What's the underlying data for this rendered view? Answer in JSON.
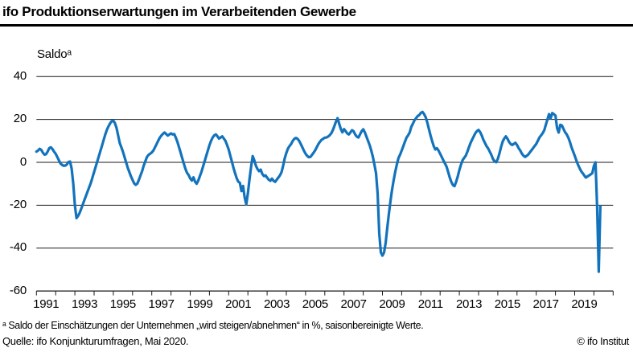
{
  "header": {
    "title": "ifo Produktionserwartungen im Verarbeitenden Gewerbe"
  },
  "footer": {
    "footnote": "ᵃ Saldo der Einschätzungen der Unternehmen „wird steigen/abnehmen“ in %, saisonbereinigte Werte.",
    "source": "Quelle: ifo Konjunkturumfragen, Mai 2020.",
    "copyright": "© ifo Institut"
  },
  "chart_data": {
    "type": "line",
    "title": "ifo Produktionserwartungen im Verarbeitenden Gewerbe",
    "ylabel": "Saldoᵃ",
    "xlabel": "",
    "ylim": [
      -60,
      40
    ],
    "yticks": [
      40,
      20,
      0,
      -20,
      -40,
      -60
    ],
    "x_start_year": 1991,
    "x_end_year": 2021,
    "xtick_years": [
      1991,
      1993,
      1995,
      1997,
      1999,
      2001,
      2003,
      2005,
      2007,
      2009,
      2011,
      2013,
      2015,
      2017,
      2019
    ],
    "grid": true,
    "legend_position": "none",
    "line_color": "#1273bc",
    "grid_color": "#1a1a1a",
    "series": [
      {
        "name": "Produktionserwartungen (Saldo, saisonbereinigt)",
        "frequency": "monthly",
        "start": "1991-01",
        "end": "2020-05",
        "values": [
          5.0,
          5.5,
          6.3,
          5.8,
          4.5,
          3.6,
          3.8,
          5.0,
          6.6,
          7.0,
          6.2,
          5.0,
          4.0,
          2.5,
          1.0,
          -0.5,
          -1.2,
          -1.6,
          -1.5,
          -1.0,
          0.2,
          0.4,
          -3.0,
          -10.0,
          -20.0,
          -26.0,
          -25.0,
          -23.5,
          -21.5,
          -19.5,
          -17.5,
          -15.5,
          -13.5,
          -11.5,
          -9.5,
          -7.0,
          -4.5,
          -2.0,
          0.5,
          3.0,
          5.5,
          8.0,
          10.5,
          13.0,
          15.2,
          16.8,
          18.2,
          19.2,
          19.4,
          18.3,
          16.0,
          12.5,
          9.0,
          7.0,
          5.0,
          2.5,
          0.0,
          -2.5,
          -4.5,
          -6.5,
          -8.2,
          -9.8,
          -10.5,
          -9.9,
          -8.0,
          -6.0,
          -4.0,
          -1.5,
          0.5,
          2.5,
          3.5,
          4.0,
          4.6,
          5.5,
          7.0,
          8.5,
          10.1,
          11.5,
          12.5,
          13.3,
          13.9,
          13.2,
          12.5,
          13.0,
          13.5,
          13.0,
          13.2,
          11.5,
          9.5,
          7.0,
          4.5,
          2.0,
          -0.5,
          -3.0,
          -4.9,
          -5.9,
          -7.5,
          -8.5,
          -7.0,
          -9.0,
          -10.0,
          -8.5,
          -6.5,
          -4.5,
          -2.0,
          0.5,
          3.0,
          5.5,
          8.0,
          10.0,
          11.6,
          12.6,
          13.0,
          12.1,
          11.1,
          11.6,
          12.1,
          11.1,
          10.0,
          8.1,
          6.0,
          3.1,
          0.4,
          -2.6,
          -5.1,
          -7.4,
          -9.0,
          -9.5,
          -13.4,
          -11.0,
          -16.4,
          -19.6,
          -14.4,
          -7.9,
          -2.0,
          2.9,
          0.9,
          -1.6,
          -3.1,
          -4.1,
          -3.4,
          -5.4,
          -6.4,
          -6.1,
          -7.1,
          -8.1,
          -8.6,
          -7.6,
          -8.6,
          -9.1,
          -8.1,
          -7.1,
          -6.1,
          -4.6,
          -1.6,
          1.9,
          4.4,
          6.4,
          7.6,
          8.6,
          10.0,
          11.0,
          11.4,
          11.0,
          10.0,
          8.6,
          7.0,
          5.4,
          4.0,
          3.0,
          2.4,
          2.5,
          3.5,
          4.5,
          5.6,
          7.0,
          8.5,
          9.6,
          10.5,
          11.0,
          11.5,
          11.6,
          12.0,
          12.6,
          13.5,
          15.0,
          17.0,
          19.0,
          20.6,
          18.0,
          15.6,
          14.0,
          15.5,
          14.6,
          13.5,
          13.0,
          14.0,
          15.0,
          14.5,
          13.0,
          12.0,
          11.6,
          13.0,
          14.5,
          15.4,
          14.0,
          12.0,
          10.0,
          8.0,
          5.5,
          2.5,
          -1.0,
          -5.0,
          -14.5,
          -33.0,
          -42.0,
          -43.5,
          -42.0,
          -37.5,
          -30.5,
          -24.0,
          -18.0,
          -12.9,
          -8.4,
          -4.4,
          -1.0,
          2.0,
          3.6,
          5.5,
          7.5,
          9.6,
          11.5,
          12.6,
          14.0,
          16.5,
          18.0,
          19.6,
          20.6,
          21.6,
          22.1,
          23.1,
          23.5,
          22.5,
          21.0,
          18.5,
          15.5,
          12.5,
          10.0,
          7.6,
          6.0,
          6.6,
          5.5,
          4.0,
          2.5,
          1.0,
          -0.5,
          -2.0,
          -4.5,
          -7.0,
          -9.1,
          -10.6,
          -11.1,
          -9.1,
          -6.6,
          -3.6,
          -1.1,
          1.0,
          2.1,
          3.1,
          5.0,
          7.0,
          9.0,
          10.6,
          12.1,
          13.6,
          14.6,
          15.1,
          14.1,
          12.5,
          10.5,
          9.0,
          7.5,
          6.5,
          5.0,
          3.5,
          1.6,
          0.5,
          0.1,
          1.6,
          4.1,
          7.1,
          9.6,
          11.1,
          12.1,
          11.1,
          9.6,
          8.6,
          8.1,
          8.6,
          9.1,
          8.1,
          6.6,
          5.5,
          4.1,
          3.1,
          2.5,
          3.0,
          3.6,
          4.6,
          5.6,
          6.6,
          7.6,
          8.6,
          10.1,
          11.6,
          12.6,
          13.6,
          15.0,
          17.5,
          20.0,
          22.5,
          20.5,
          23.0,
          22.5,
          21.8,
          16.0,
          13.9,
          17.5,
          17.2,
          15.6,
          14.1,
          13.1,
          11.6,
          9.6,
          7.1,
          5.1,
          3.1,
          1.0,
          -1.0,
          -2.6,
          -4.1,
          -5.1,
          -6.1,
          -7.1,
          -6.6,
          -6.1,
          -5.6,
          -5.1,
          -1.6,
          0.0,
          -21.0,
          -51.0,
          -20.5
        ]
      }
    ]
  }
}
